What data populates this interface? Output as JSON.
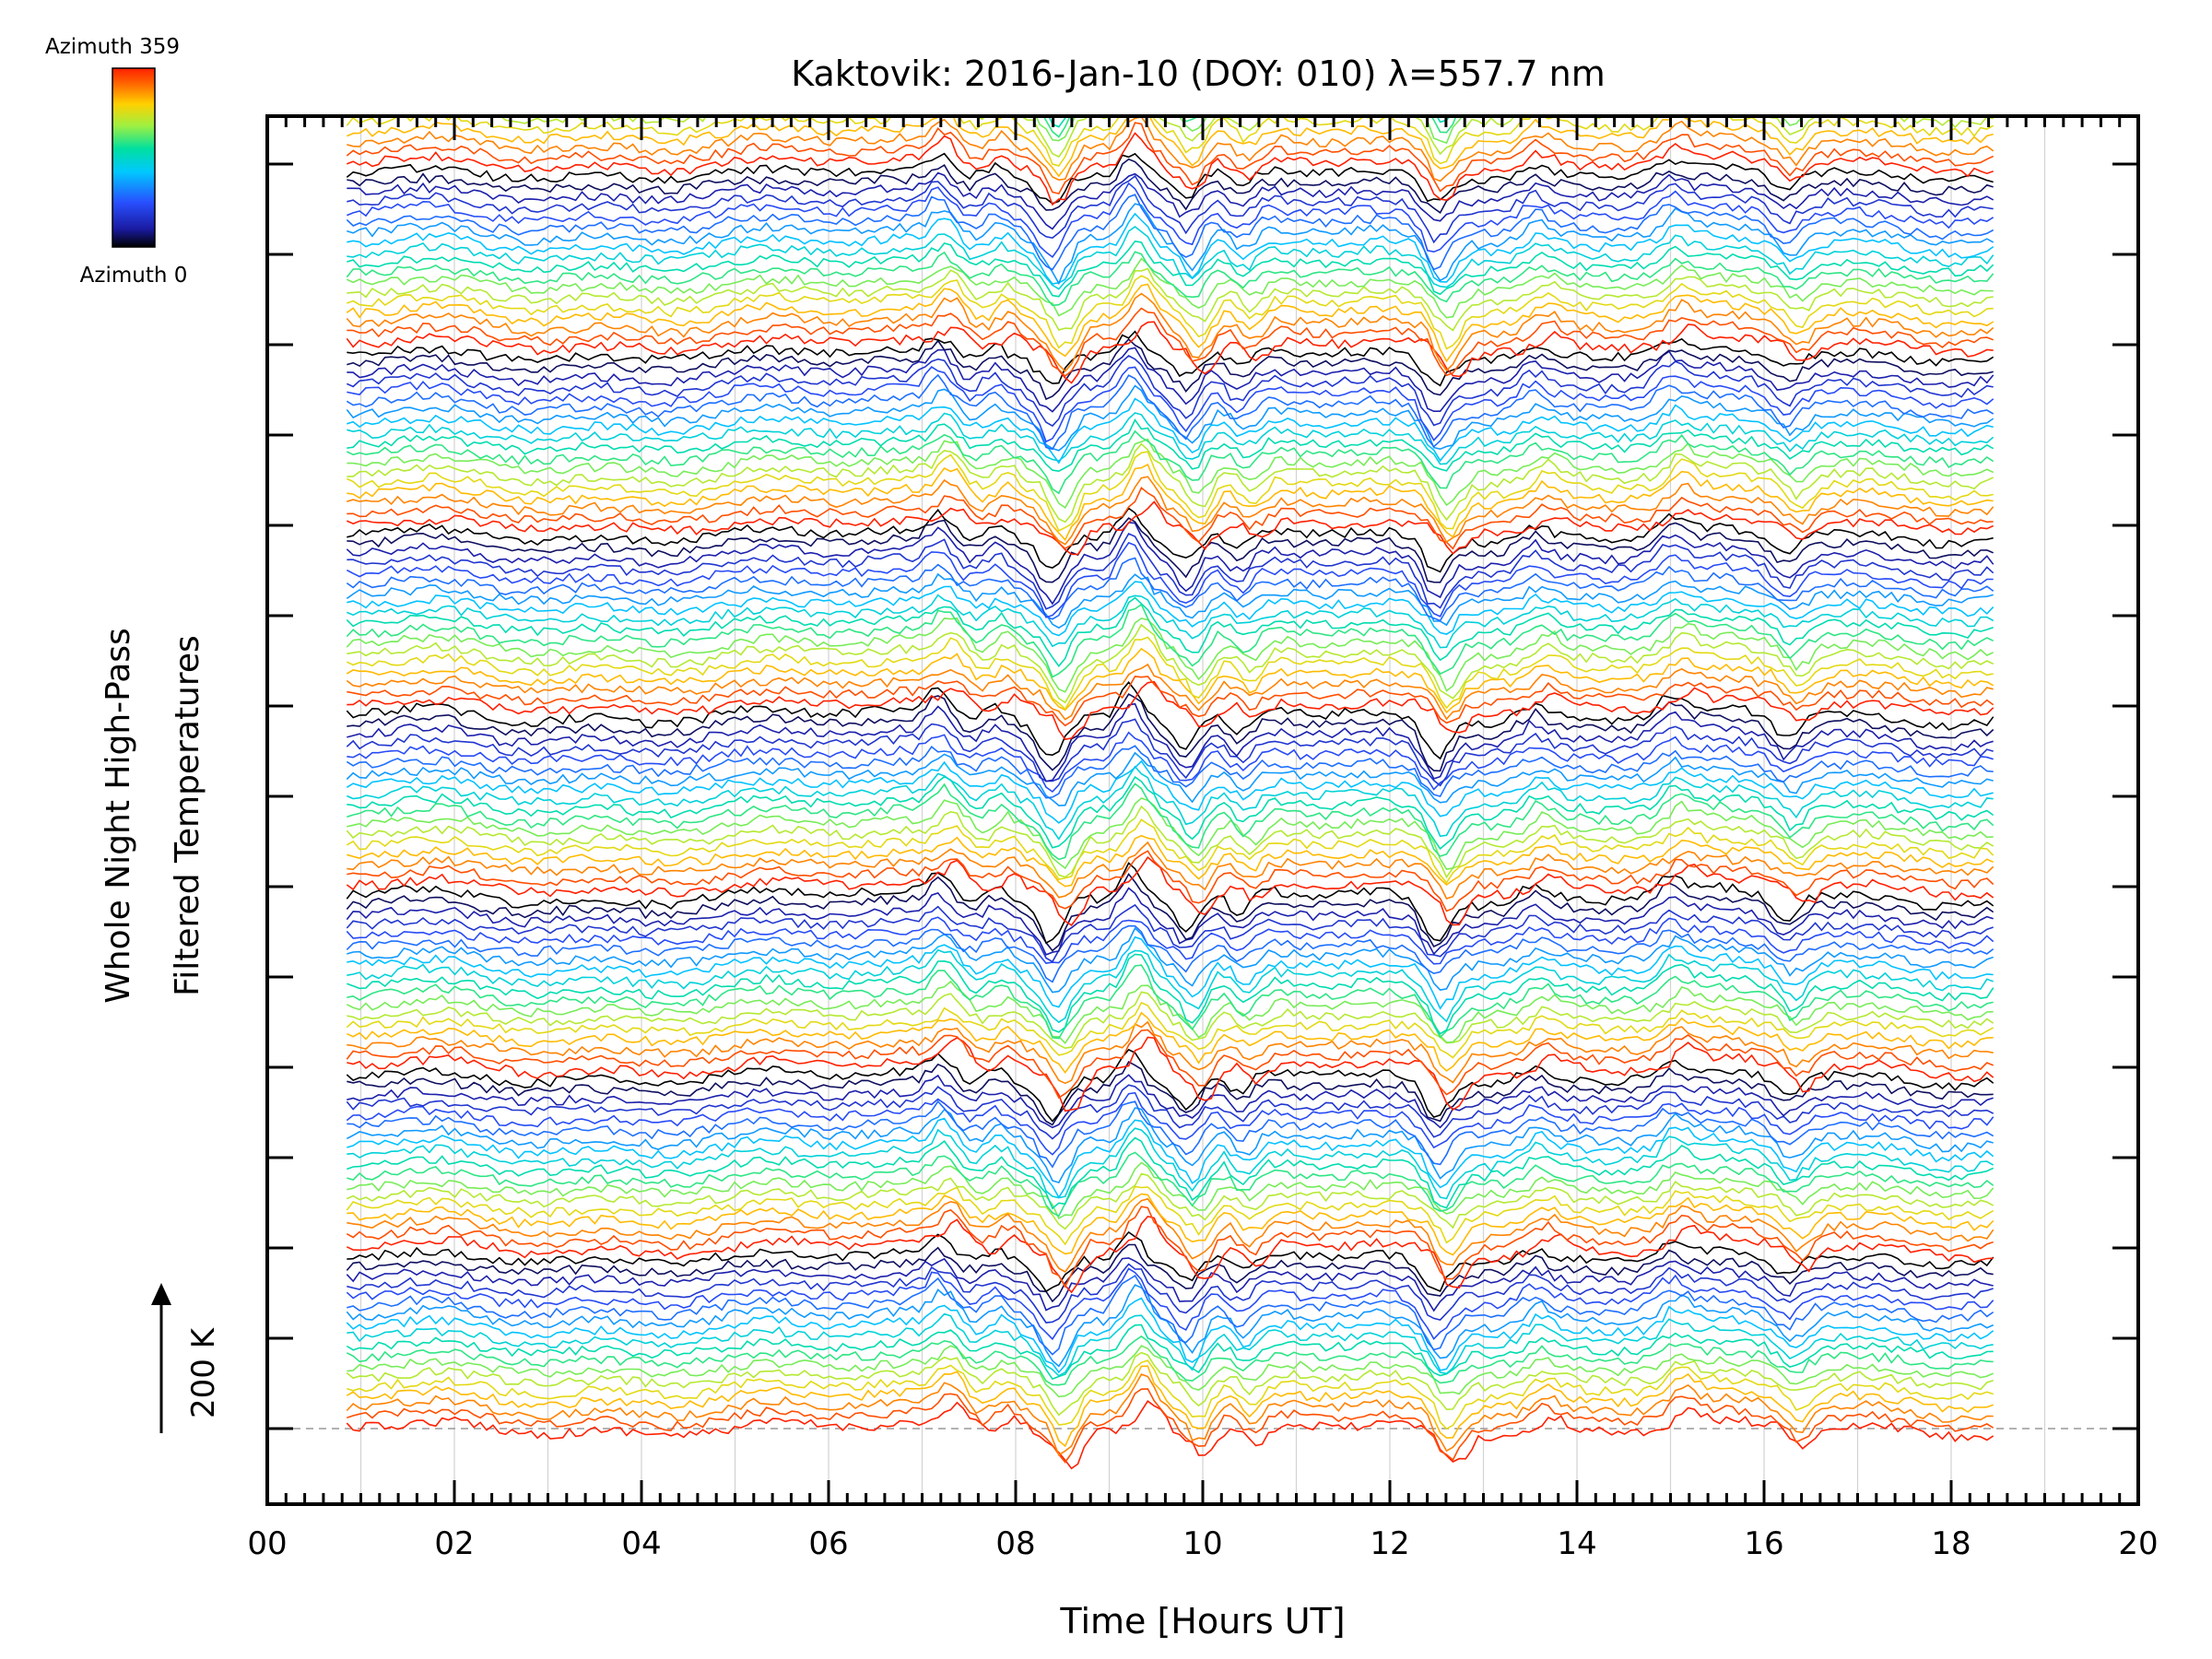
{
  "chart_data": {
    "type": "line",
    "title": "Kaktovik: 2016-Jan-10 (DOY: 010) λ=557.7 nm",
    "xlabel": "Time [Hours UT]",
    "ylabel_line1": "Whole Night High-Pass",
    "ylabel_line2": "Filtered Temperatures",
    "scale_label": "200 K",
    "x_ticks": [
      "00",
      "02",
      "04",
      "06",
      "08",
      "10",
      "12",
      "14",
      "16",
      "18",
      "20"
    ],
    "xlim": [
      0,
      20
    ],
    "data_time_range": [
      0.85,
      18.45
    ],
    "azimuth_min_label": "Azimuth 0",
    "azimuth_max_label": "Azimuth 359",
    "azimuth_range": [
      0,
      359
    ],
    "num_bands": 7,
    "traces_per_band": 18,
    "vertical_offset_per_band_K": 200,
    "events": [
      {
        "time": 7.25,
        "amplitude": 0.6
      },
      {
        "time": 7.85,
        "amplitude": 0.45
      },
      {
        "time": 8.45,
        "amplitude": -1.0
      },
      {
        "time": 9.3,
        "amplitude": 0.9
      },
      {
        "time": 9.9,
        "amplitude": -0.8
      },
      {
        "time": 10.45,
        "amplitude": -0.6
      },
      {
        "time": 12.55,
        "amplitude": -0.9
      },
      {
        "time": 13.6,
        "amplitude": 0.35
      },
      {
        "time": 15.05,
        "amplitude": 0.4
      },
      {
        "time": 16.3,
        "amplitude": -0.5
      }
    ],
    "grid": true,
    "dashed_reference_line": true
  },
  "colors": {
    "axis": "#000000",
    "grid": "#d3d3d3",
    "colorbar_stops": [
      "#000000",
      "#1a1aa0",
      "#2850ff",
      "#00c8ff",
      "#00e0a0",
      "#a0f040",
      "#ffd000",
      "#ff6000",
      "#ff2000"
    ]
  }
}
